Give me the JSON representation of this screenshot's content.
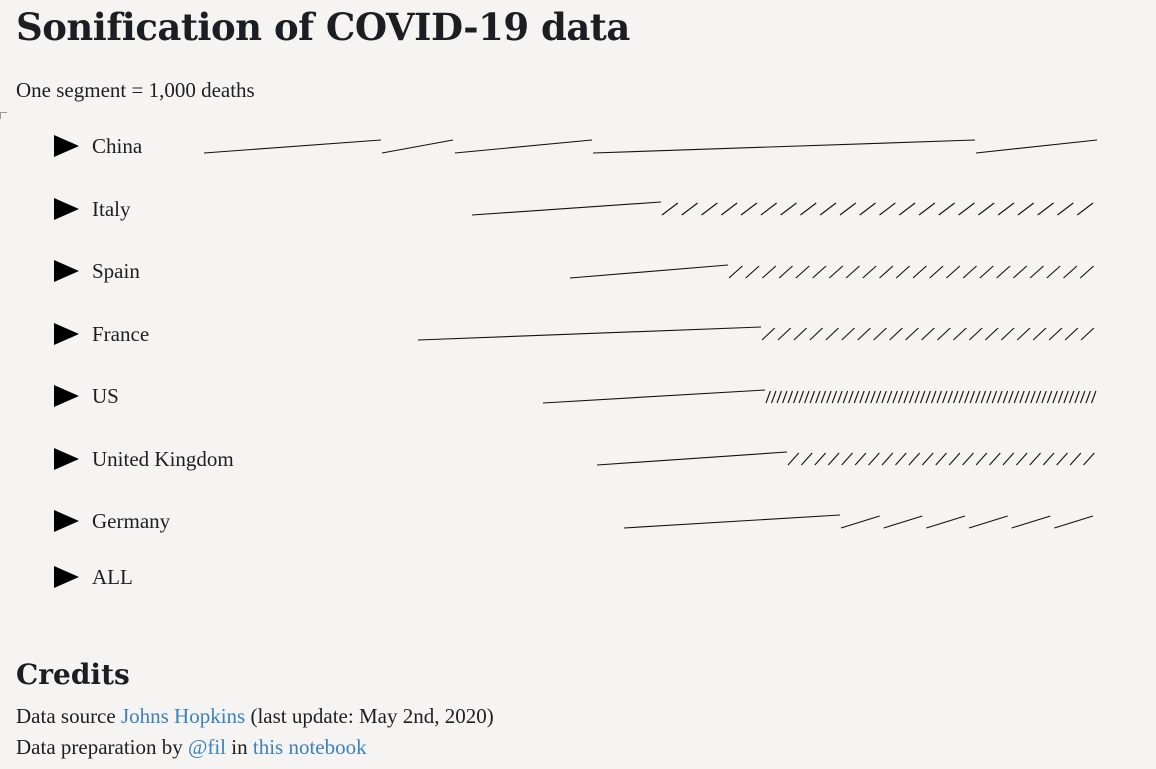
{
  "page": {
    "title": "Sonification of COVID-19 data",
    "subtitle": "One segment = 1,000 deaths"
  },
  "countries": [
    {
      "label": "China",
      "icon": "play-icon"
    },
    {
      "label": "Italy",
      "icon": "play-icon"
    },
    {
      "label": "Spain",
      "icon": "play-icon"
    },
    {
      "label": "France",
      "icon": "play-icon"
    },
    {
      "label": "US",
      "icon": "play-icon"
    },
    {
      "label": "United Kingdom",
      "icon": "play-icon"
    },
    {
      "label": "Germany",
      "icon": "play-icon"
    },
    {
      "label": "ALL",
      "icon": "play-icon"
    }
  ],
  "credits": {
    "heading": "Credits",
    "line1_prefix": "Data source ",
    "line1_link": "Johns Hopkins",
    "line1_suffix": " (last update: May 2nd, 2020)",
    "line2_prefix": "Data preparation by ",
    "line2_link1": "@fil",
    "line2_mid": " in ",
    "line2_link2": "this notebook"
  },
  "colors": {
    "background": "#f5f4f2",
    "text": "#1b1e23",
    "link": "#3b82b8",
    "segment": "#111111"
  }
}
